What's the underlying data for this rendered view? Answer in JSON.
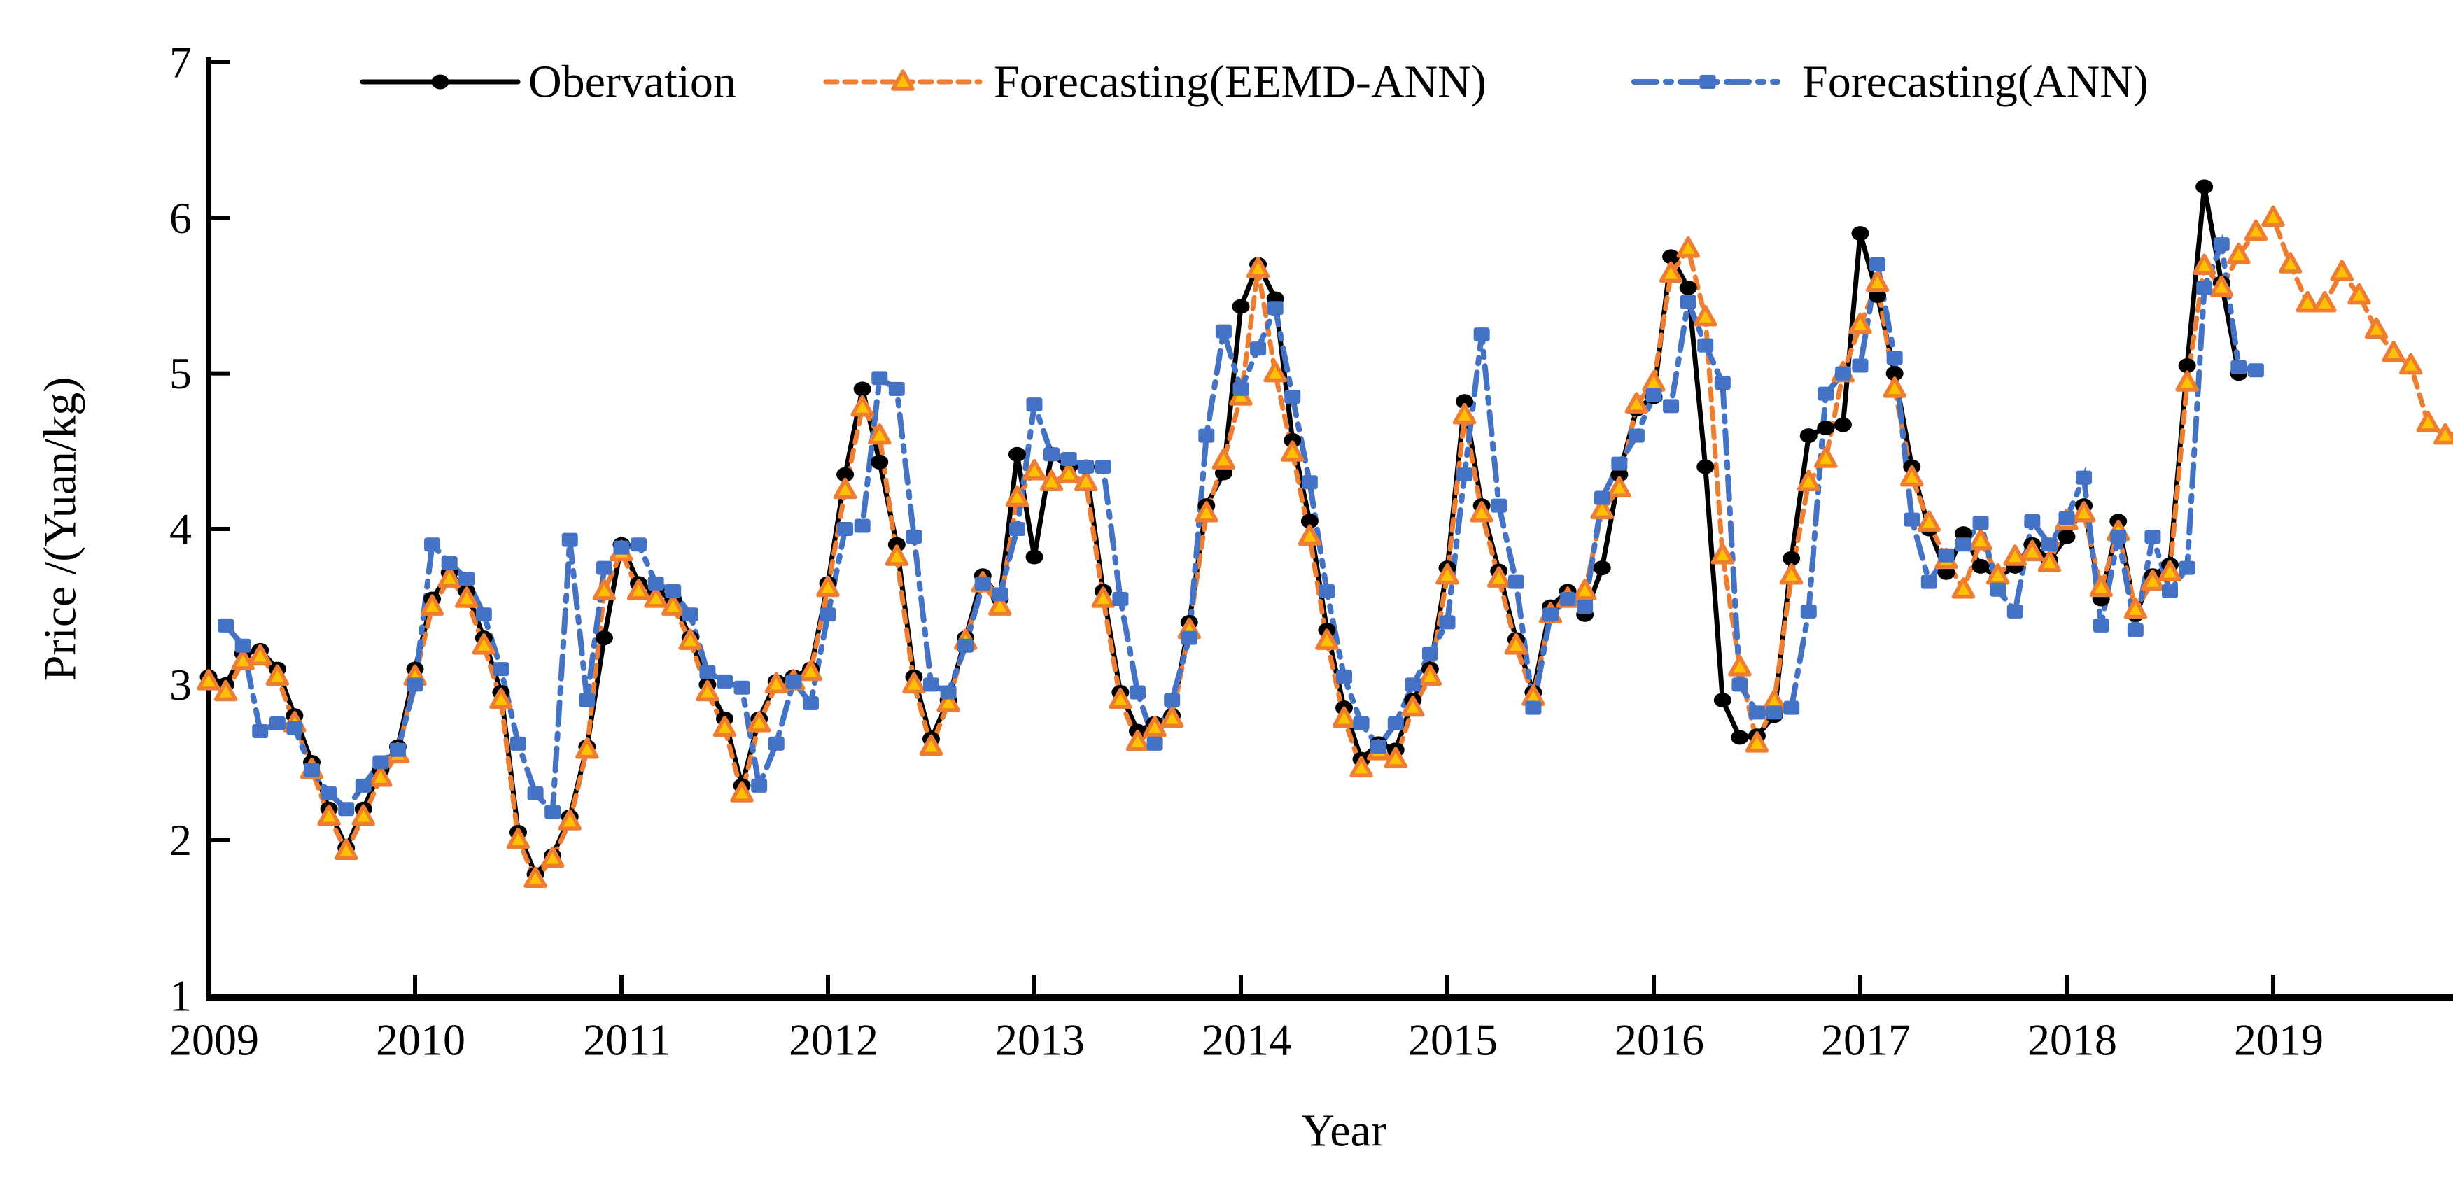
{
  "figure": {
    "background": "#ffffff",
    "y_axis": {
      "title": "Price /(Yuan/kg)",
      "min": 1,
      "max": 7,
      "tick_labels": [
        "1",
        "2",
        "3",
        "4",
        "5",
        "6",
        "7"
      ]
    },
    "x_axis": {
      "title": "Year",
      "min": 2009,
      "max": 2020,
      "tick_labels": [
        "2009",
        "2010",
        "2011",
        "2012",
        "2013",
        "2014",
        "2015",
        "2016",
        "2017",
        "2018",
        "2019"
      ]
    },
    "legend": [
      {
        "label": "Obervation",
        "series": "observation",
        "color": "#000000",
        "marker": "circle"
      },
      {
        "label": "Forecasting(EEMD-ANN)",
        "series": "eemd_ann",
        "color": "#ED7D31",
        "marker": "triangle"
      },
      {
        "label": "Forecasting(ANN)",
        "series": "ann",
        "color": "#4472C4",
        "marker": "square"
      }
    ],
    "colors": {
      "observation": "#000000",
      "eemd_ann_line": "#ED7D31",
      "eemd_ann_marker_fill": "#FFC000",
      "ann": "#4472C4",
      "axis": "#000000"
    }
  },
  "chart_data": {
    "type": "line",
    "title": "",
    "xlabel": "Year",
    "ylabel": "Price /(Yuan/kg)",
    "ylim": [
      1,
      7
    ],
    "xlim": [
      2009,
      2020
    ],
    "x_start": "2009-01",
    "x_step": "1 month",
    "grid": false,
    "legend_position": "top",
    "series": [
      {
        "name": "Obervation",
        "color": "#000000",
        "line": "solid",
        "marker": "circle",
        "values": [
          3.05,
          3.0,
          3.2,
          3.22,
          3.1,
          2.8,
          2.5,
          2.2,
          1.95,
          2.2,
          2.45,
          2.6,
          3.1,
          3.55,
          3.72,
          3.6,
          3.3,
          2.95,
          2.05,
          1.78,
          1.9,
          2.15,
          2.6,
          3.3,
          3.9,
          3.65,
          3.6,
          3.55,
          3.3,
          3.0,
          2.78,
          2.35,
          2.78,
          3.02,
          3.05,
          3.1,
          3.65,
          4.35,
          4.9,
          4.43,
          3.9,
          3.05,
          2.65,
          2.9,
          3.3,
          3.7,
          3.55,
          4.48,
          3.82,
          4.48,
          4.4,
          4.4,
          3.6,
          2.95,
          2.7,
          2.75,
          2.8,
          3.4,
          4.15,
          4.36,
          5.43,
          5.7,
          5.48,
          4.57,
          4.05,
          3.35,
          2.85,
          2.52,
          2.62,
          2.58,
          2.9,
          3.1,
          3.75,
          4.82,
          4.15,
          3.73,
          3.29,
          2.95,
          3.5,
          3.6,
          3.45,
          3.75,
          4.35,
          4.77,
          4.85,
          5.75,
          5.55,
          4.4,
          2.9,
          2.66,
          2.67,
          2.8,
          3.81,
          4.6,
          4.65,
          4.67,
          5.9,
          5.5,
          5.0,
          4.4,
          4.0,
          3.72,
          3.97,
          3.76,
          3.69,
          3.76,
          3.9,
          3.8,
          3.95,
          4.15,
          3.55,
          4.05,
          3.45,
          3.7,
          3.77,
          5.05,
          6.2,
          5.58,
          5.0,
          null
        ]
      },
      {
        "name": "Forecasting(EEMD-ANN)",
        "color": "#ED7D31",
        "marker_fill": "#FFC000",
        "line": "dashed",
        "marker": "triangle",
        "values": [
          3.02,
          2.95,
          3.15,
          3.18,
          3.05,
          2.75,
          2.45,
          2.15,
          1.93,
          2.15,
          2.4,
          2.55,
          3.05,
          3.5,
          3.68,
          3.55,
          3.25,
          2.9,
          2.0,
          1.75,
          1.88,
          2.12,
          2.58,
          3.6,
          3.85,
          3.6,
          3.55,
          3.5,
          3.28,
          2.95,
          2.72,
          2.3,
          2.75,
          3.0,
          3.02,
          3.08,
          3.62,
          4.25,
          4.78,
          4.6,
          3.82,
          3.0,
          2.6,
          2.88,
          3.28,
          3.65,
          3.5,
          4.2,
          4.37,
          4.3,
          4.35,
          4.3,
          3.55,
          2.9,
          2.63,
          2.72,
          2.78,
          3.35,
          4.1,
          4.44,
          4.85,
          5.67,
          5.0,
          4.49,
          3.95,
          3.28,
          2.78,
          2.46,
          2.57,
          2.52,
          2.85,
          3.05,
          3.7,
          4.73,
          4.1,
          3.68,
          3.25,
          2.92,
          3.45,
          3.55,
          3.6,
          4.12,
          4.26,
          4.8,
          4.94,
          5.64,
          5.8,
          5.36,
          3.83,
          3.11,
          2.62,
          2.89,
          3.7,
          4.3,
          4.45,
          5.0,
          5.31,
          5.58,
          4.9,
          4.33,
          4.04,
          3.8,
          3.61,
          3.92,
          3.7,
          3.82,
          3.85,
          3.78,
          4.05,
          4.1,
          3.62,
          3.98,
          3.48,
          3.66,
          3.72,
          4.94,
          5.69,
          5.55,
          5.76,
          5.91,
          6.0,
          5.7,
          5.45,
          5.45,
          5.65,
          5.5,
          5.28,
          5.13,
          5.05,
          4.68,
          4.6,
          4.62
        ]
      },
      {
        "name": "Forecasting(ANN)",
        "color": "#4472C4",
        "line": "dash-dot",
        "marker": "square",
        "values": [
          null,
          3.38,
          3.25,
          2.7,
          2.75,
          2.72,
          2.45,
          2.3,
          2.2,
          2.35,
          2.5,
          2.58,
          3.0,
          3.9,
          3.78,
          3.68,
          3.45,
          3.1,
          2.62,
          2.3,
          2.18,
          3.93,
          2.9,
          3.75,
          3.88,
          3.9,
          3.65,
          3.6,
          3.45,
          3.08,
          3.02,
          2.98,
          2.35,
          2.62,
          3.02,
          2.88,
          3.45,
          4.0,
          4.02,
          4.97,
          4.9,
          3.95,
          3.0,
          2.95,
          3.25,
          3.65,
          3.58,
          4.0,
          4.8,
          4.48,
          4.45,
          4.4,
          4.4,
          3.55,
          2.95,
          2.62,
          2.9,
          3.3,
          4.6,
          5.27,
          4.9,
          5.16,
          5.42,
          4.85,
          4.3,
          3.6,
          3.05,
          2.75,
          2.6,
          2.75,
          3.0,
          3.2,
          3.4,
          4.35,
          5.25,
          4.15,
          3.66,
          2.85,
          3.45,
          3.55,
          3.5,
          4.2,
          4.42,
          4.6,
          4.86,
          4.79,
          5.46,
          5.18,
          4.94,
          3.0,
          2.82,
          2.82,
          2.85,
          3.47,
          4.87,
          5.0,
          5.05,
          5.7,
          5.1,
          4.06,
          3.66,
          3.83,
          3.9,
          4.04,
          3.61,
          3.47,
          4.05,
          3.9,
          4.07,
          4.33,
          3.38,
          3.95,
          3.35,
          3.95,
          3.6,
          3.75,
          5.55,
          5.83,
          5.04,
          5.02
        ]
      }
    ]
  }
}
